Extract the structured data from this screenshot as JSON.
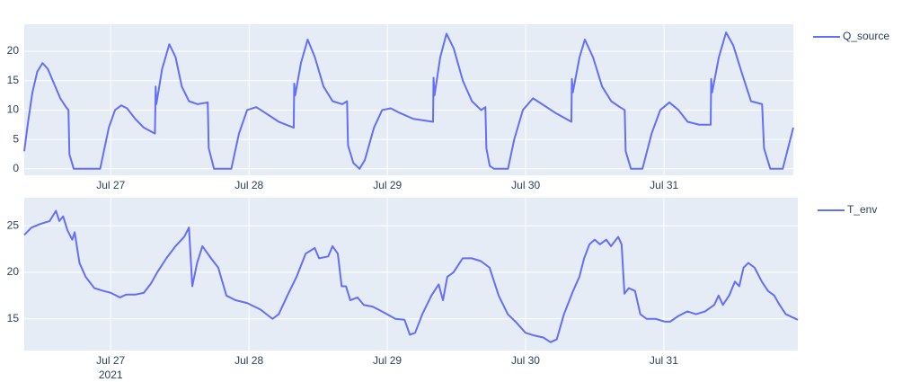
{
  "chart_data": [
    {
      "type": "line",
      "grid": true,
      "legend": "right",
      "xlim": [
        "2021-07-26 09:00",
        "2021-07-31 22:25"
      ],
      "ylim": [
        -1.1,
        24.6
      ],
      "yticks": [
        0,
        5,
        10,
        15,
        20
      ],
      "xticks": [
        {
          "value": "2021-07-27",
          "label": "Jul 27"
        },
        {
          "value": "2021-07-28",
          "label": "Jul 28"
        },
        {
          "value": "2021-07-29",
          "label": "Jul 29"
        },
        {
          "value": "2021-07-30",
          "label": "Jul 30"
        },
        {
          "value": "2021-07-31",
          "label": "Jul 31"
        }
      ],
      "x": [
        "2021-07-26 09:00",
        "2021-07-26 09:40",
        "2021-07-26 10:25",
        "2021-07-26 11:15",
        "2021-07-26 12:10",
        "2021-07-26 13:05",
        "2021-07-26 14:10",
        "2021-07-26 15:15",
        "2021-07-26 16:15",
        "2021-07-26 16:40",
        "2021-07-26 16:50",
        "2021-07-26 17:35",
        "2021-07-26 22:10",
        "2021-07-26 23:40",
        "2021-07-27 00:45",
        "2021-07-27 01:50",
        "2021-07-27 02:50",
        "2021-07-27 04:15",
        "2021-07-27 05:45",
        "2021-07-27 07:40",
        "2021-07-27 07:48",
        "2021-07-27 07:55",
        "2021-07-27 08:55",
        "2021-07-27 10:10",
        "2021-07-27 11:15",
        "2021-07-27 12:20",
        "2021-07-27 13:35",
        "2021-07-27 15:05",
        "2021-07-27 16:50",
        "2021-07-27 17:00",
        "2021-07-27 17:55",
        "2021-07-27 20:55",
        "2021-07-27 22:15",
        "2021-07-27 23:40",
        "2021-07-28 01:15",
        "2021-07-28 02:50",
        "2021-07-28 05:10",
        "2021-07-28 07:45",
        "2021-07-28 07:50",
        "2021-07-28 08:00",
        "2021-07-28 09:00",
        "2021-07-28 10:10",
        "2021-07-28 11:25",
        "2021-07-28 12:55",
        "2021-07-28 14:30",
        "2021-07-28 16:10",
        "2021-07-28 17:00",
        "2021-07-28 17:10",
        "2021-07-28 18:05",
        "2021-07-28 19:10",
        "2021-07-28 20:05",
        "2021-07-28 21:40",
        "2021-07-28 23:05",
        "2021-07-29 00:35",
        "2021-07-29 02:10",
        "2021-07-29 04:30",
        "2021-07-29 07:55",
        "2021-07-29 08:00",
        "2021-07-29 08:10",
        "2021-07-29 09:10",
        "2021-07-29 10:15",
        "2021-07-29 11:30",
        "2021-07-29 13:05",
        "2021-07-29 14:40",
        "2021-07-29 16:15",
        "2021-07-29 17:00",
        "2021-07-29 17:10",
        "2021-07-29 17:45",
        "2021-07-29 18:30",
        "2021-07-29 20:55",
        "2021-07-29 22:00",
        "2021-07-29 23:30",
        "2021-07-30 01:15",
        "2021-07-30 02:50",
        "2021-07-30 05:10",
        "2021-07-30 07:55",
        "2021-07-30 08:00",
        "2021-07-30 08:10",
        "2021-07-30 09:20",
        "2021-07-30 10:15",
        "2021-07-30 11:40",
        "2021-07-30 13:15",
        "2021-07-30 14:50",
        "2021-07-30 16:20",
        "2021-07-30 17:10",
        "2021-07-30 17:20",
        "2021-07-30 18:15",
        "2021-07-30 20:15",
        "2021-07-30 21:50",
        "2021-07-30 23:20",
        "2021-07-31 00:55",
        "2021-07-31 02:30",
        "2021-07-31 04:05",
        "2021-07-31 06:05",
        "2021-07-31 08:05",
        "2021-07-31 08:10",
        "2021-07-31 08:20",
        "2021-07-31 09:30",
        "2021-07-31 10:45",
        "2021-07-31 12:00",
        "2021-07-31 13:35",
        "2021-07-31 15:05",
        "2021-07-31 17:00",
        "2021-07-31 17:20",
        "2021-07-31 18:25",
        "2021-07-31 20:35",
        "2021-07-31 22:25"
      ],
      "series": [
        {
          "name": "Q_source",
          "color": "#636efa",
          "values": [
            3,
            8,
            13,
            16.5,
            18,
            17,
            14.5,
            12,
            10.5,
            10,
            2.5,
            0,
            0,
            7,
            10,
            10.8,
            10.3,
            8.5,
            7,
            6,
            14,
            11,
            17,
            21.2,
            19,
            14,
            11.5,
            11,
            11.3,
            3.5,
            0,
            0,
            6,
            10,
            10.5,
            9.5,
            8,
            7,
            14.5,
            12.5,
            18,
            22,
            19,
            14,
            11.5,
            11,
            11.5,
            4,
            1,
            0,
            1.5,
            7,
            10,
            10.3,
            9.5,
            8.5,
            8,
            15.5,
            12.5,
            19,
            23,
            20.5,
            15,
            11.5,
            10,
            10.5,
            3.5,
            0.5,
            0,
            0,
            5,
            10,
            12,
            11,
            9.5,
            8,
            15.3,
            13,
            19,
            22,
            19,
            14,
            11.5,
            10.5,
            10,
            3,
            0,
            0,
            6,
            10,
            11.3,
            10,
            8,
            7.5,
            7.5,
            15.3,
            13,
            19,
            23.2,
            21,
            16,
            11.5,
            11,
            3.5,
            0,
            0,
            7
          ]
        }
      ]
    },
    {
      "type": "line",
      "grid": true,
      "legend": "right",
      "xlim": [
        "2021-07-26 09:00",
        "2021-07-31 23:15"
      ],
      "ylim": [
        11.6,
        28.0
      ],
      "yticks": [
        15,
        20,
        25
      ],
      "xticks": [
        {
          "value": "2021-07-27",
          "label": "Jul 27"
        },
        {
          "value": "2021-07-28",
          "label": "Jul 28"
        },
        {
          "value": "2021-07-29",
          "label": "Jul 29"
        },
        {
          "value": "2021-07-30",
          "label": "Jul 30"
        },
        {
          "value": "2021-07-31",
          "label": "Jul 31"
        }
      ],
      "xtick_year": "2021",
      "x": [
        "2021-07-26 09:00",
        "2021-07-26 10:15",
        "2021-07-26 11:50",
        "2021-07-26 13:25",
        "2021-07-26 14:30",
        "2021-07-26 15:05",
        "2021-07-26 15:45",
        "2021-07-26 16:30",
        "2021-07-26 17:20",
        "2021-07-26 17:45",
        "2021-07-26 18:35",
        "2021-07-26 19:40",
        "2021-07-26 21:10",
        "2021-07-26 22:45",
        "2021-07-27 00:00",
        "2021-07-27 01:35",
        "2021-07-27 02:40",
        "2021-07-27 04:15",
        "2021-07-27 05:45",
        "2021-07-27 07:00",
        "2021-07-27 08:05",
        "2021-07-27 09:40",
        "2021-07-27 11:15",
        "2021-07-27 12:45",
        "2021-07-27 13:35",
        "2021-07-27 14:10",
        "2021-07-27 15:00",
        "2021-07-27 15:55",
        "2021-07-27 17:25",
        "2021-07-27 18:40",
        "2021-07-27 20:05",
        "2021-07-27 21:40",
        "2021-07-27 23:40",
        "2021-07-28 02:00",
        "2021-07-28 04:05",
        "2021-07-28 05:10",
        "2021-07-28 06:40",
        "2021-07-28 08:15",
        "2021-07-28 09:50",
        "2021-07-28 11:25",
        "2021-07-28 12:10",
        "2021-07-28 13:45",
        "2021-07-28 14:30",
        "2021-07-28 15:25",
        "2021-07-28 16:05",
        "2021-07-28 16:50",
        "2021-07-28 17:35",
        "2021-07-28 18:50",
        "2021-07-28 19:55",
        "2021-07-28 21:30",
        "2021-07-28 23:05",
        "2021-07-29 01:25",
        "2021-07-29 03:00",
        "2021-07-29 03:55",
        "2021-07-29 04:50",
        "2021-07-29 06:05",
        "2021-07-29 07:40",
        "2021-07-29 08:55",
        "2021-07-29 09:40",
        "2021-07-29 10:25",
        "2021-07-29 11:30",
        "2021-07-29 13:05",
        "2021-07-29 14:40",
        "2021-07-29 16:15",
        "2021-07-29 17:45",
        "2021-07-29 19:20",
        "2021-07-29 20:55",
        "2021-07-29 22:25",
        "2021-07-30 00:00",
        "2021-07-30 01:35",
        "2021-07-30 03:05",
        "2021-07-30 04:20",
        "2021-07-30 05:25",
        "2021-07-30 06:40",
        "2021-07-30 08:15",
        "2021-07-30 09:20",
        "2021-07-30 10:10",
        "2021-07-30 11:05",
        "2021-07-30 12:00",
        "2021-07-30 12:55",
        "2021-07-30 14:00",
        "2021-07-30 14:50",
        "2021-07-30 16:05",
        "2021-07-30 16:40",
        "2021-07-30 17:10",
        "2021-07-30 17:55",
        "2021-07-30 19:00",
        "2021-07-30 19:55",
        "2021-07-30 21:00",
        "2021-07-30 22:35",
        "2021-07-31 00:10",
        "2021-07-31 01:05",
        "2021-07-31 02:30",
        "2021-07-31 04:05",
        "2021-07-31 05:35",
        "2021-07-31 07:10",
        "2021-07-31 08:45",
        "2021-07-31 09:30",
        "2021-07-31 10:15",
        "2021-07-31 11:20",
        "2021-07-31 12:20",
        "2021-07-31 13:05",
        "2021-07-31 13:50",
        "2021-07-31 14:40",
        "2021-07-31 15:45",
        "2021-07-31 17:00",
        "2021-07-31 18:05",
        "2021-07-31 19:10",
        "2021-07-31 20:05",
        "2021-07-31 21:10",
        "2021-07-31 23:15"
      ],
      "series": [
        {
          "name": "T_env",
          "color": "#636efa",
          "values": [
            24,
            24.8,
            25.2,
            25.5,
            26.6,
            25.5,
            26,
            24.5,
            23.5,
            24.3,
            21,
            19.5,
            18.3,
            18,
            17.8,
            17.3,
            17.6,
            17.6,
            17.8,
            18.8,
            20,
            21.5,
            22.8,
            23.8,
            24.8,
            18.5,
            21,
            22.8,
            21.5,
            20.5,
            17.5,
            17,
            16.7,
            16,
            15,
            15.5,
            17.5,
            19.5,
            22,
            22.6,
            21.5,
            21.7,
            22.8,
            22,
            18.5,
            18.5,
            17,
            17.3,
            16.5,
            16.3,
            15.8,
            15,
            14.9,
            13.3,
            13.5,
            15.5,
            17.5,
            18.7,
            17,
            19.5,
            20,
            21.5,
            21.5,
            21.2,
            20.5,
            17.5,
            15.5,
            14.6,
            13.5,
            13.2,
            13,
            12.5,
            12.8,
            15.5,
            18,
            19.5,
            21.5,
            23,
            23.5,
            23,
            23.5,
            22.8,
            23.8,
            23,
            17.7,
            18.3,
            18,
            15.5,
            15,
            15,
            14.7,
            14.7,
            15.3,
            15.8,
            15.5,
            15.8,
            16.5,
            17.5,
            16.5,
            17.5,
            19,
            18.5,
            20.5,
            21,
            20.5,
            19,
            18,
            17.5,
            16.5,
            15.5,
            14.9
          ]
        }
      ]
    }
  ]
}
